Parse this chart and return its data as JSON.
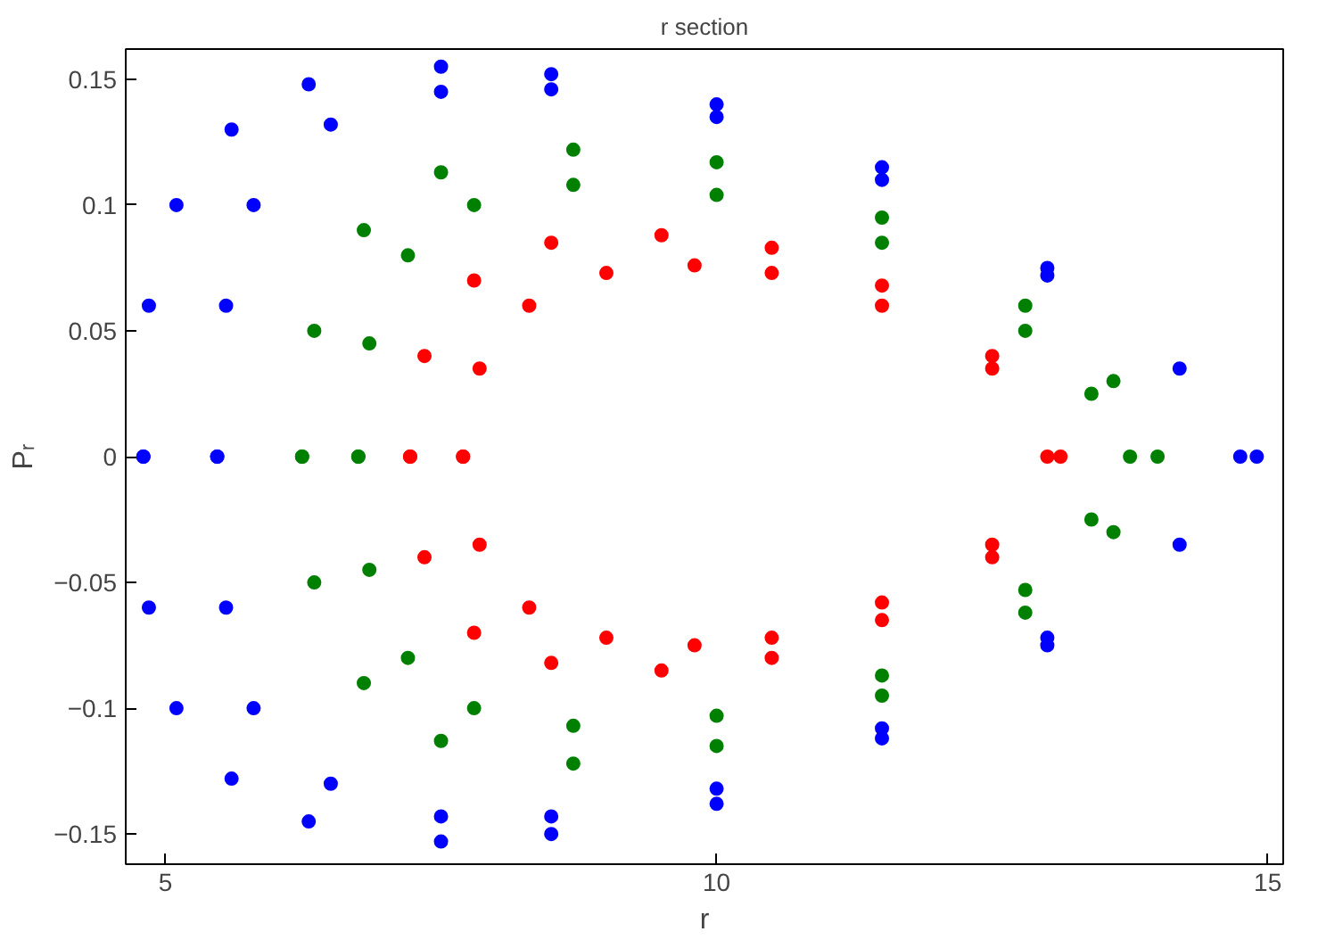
{
  "chart_data": {
    "type": "scatter",
    "title": "r section",
    "xlabel": "r",
    "ylabel": "Pᵣ",
    "xlim": [
      4.64,
      15.14
    ],
    "ylim": [
      -0.162,
      0.162
    ],
    "xticks": [
      5,
      10,
      15
    ],
    "yticks": [
      -0.15,
      -0.1,
      -0.05,
      0,
      0.05,
      0.1,
      0.15
    ],
    "grid": false,
    "marker": "circle",
    "series": [
      {
        "color": "#0000ff",
        "x": [
          4.8,
          4.85,
          5.1,
          5.6,
          6.3,
          7.5,
          8.5,
          10,
          11.5,
          13,
          14.2,
          14.9,
          14.2,
          13,
          11.5,
          10,
          8.5,
          7.5,
          6.3,
          5.6,
          5.1,
          4.85,
          4.8
        ],
        "values": [
          0,
          0.06,
          0.1,
          0.13,
          0.148,
          0.155,
          0.152,
          0.14,
          0.115,
          0.075,
          0.035,
          0,
          -0.035,
          -0.075,
          -0.112,
          -0.138,
          -0.15,
          -0.153,
          -0.145,
          -0.128,
          -0.1,
          -0.06,
          0
        ]
      },
      {
        "color": "#0000ff",
        "x": [
          5.47,
          5.55,
          5.8,
          6.5,
          7.5,
          8.5,
          10,
          11.5,
          13,
          14.75,
          13,
          11.5,
          10,
          8.5,
          7.5,
          6.5,
          5.8,
          5.55,
          5.47
        ],
        "values": [
          0,
          0.06,
          0.1,
          0.132,
          0.145,
          0.146,
          0.135,
          0.11,
          0.072,
          0,
          -0.072,
          -0.108,
          -0.132,
          -0.143,
          -0.143,
          -0.13,
          -0.1,
          -0.06,
          0
        ]
      },
      {
        "color": "#008000",
        "x": [
          6.24,
          6.35,
          6.8,
          7.5,
          8.7,
          10,
          11.5,
          12.8,
          13.6,
          14,
          13.6,
          12.8,
          11.5,
          10,
          8.7,
          7.5,
          6.8,
          6.35,
          6.24
        ],
        "values": [
          0,
          0.05,
          0.09,
          0.113,
          0.122,
          0.117,
          0.095,
          0.06,
          0.03,
          0,
          -0.03,
          -0.062,
          -0.095,
          -0.115,
          -0.122,
          -0.113,
          -0.09,
          -0.05,
          0
        ]
      },
      {
        "color": "#008000",
        "x": [
          6.75,
          6.85,
          7.2,
          7.8,
          8.7,
          10,
          11.5,
          12.8,
          13.4,
          13.75,
          13.4,
          12.8,
          11.5,
          10,
          8.7,
          7.8,
          7.2,
          6.85,
          6.75
        ],
        "values": [
          0,
          0.045,
          0.08,
          0.1,
          0.108,
          0.104,
          0.085,
          0.05,
          0.025,
          0,
          -0.025,
          -0.053,
          -0.087,
          -0.103,
          -0.107,
          -0.1,
          -0.08,
          -0.045,
          0
        ]
      },
      {
        "color": "#ff0000",
        "x": [
          7.22,
          7.35,
          7.8,
          8.5,
          9.5,
          10.5,
          11.5,
          12.5,
          13.12,
          12.5,
          11.5,
          10.5,
          9.5,
          8.5,
          7.8,
          7.35,
          7.22
        ],
        "values": [
          0,
          0.04,
          0.07,
          0.085,
          0.088,
          0.083,
          0.068,
          0.04,
          0,
          -0.04,
          -0.065,
          -0.08,
          -0.085,
          -0.082,
          -0.07,
          -0.04,
          0
        ]
      },
      {
        "color": "#ff0000",
        "x": [
          7.7,
          7.85,
          8.3,
          9,
          9.8,
          10.5,
          11.5,
          12.5,
          13.0,
          12.5,
          11.5,
          10.5,
          9.8,
          9,
          8.3,
          7.85,
          7.7
        ],
        "values": [
          0,
          0.035,
          0.06,
          0.073,
          0.076,
          0.073,
          0.06,
          0.035,
          0,
          -0.035,
          -0.058,
          -0.072,
          -0.075,
          -0.072,
          -0.06,
          -0.035,
          0
        ]
      }
    ]
  }
}
